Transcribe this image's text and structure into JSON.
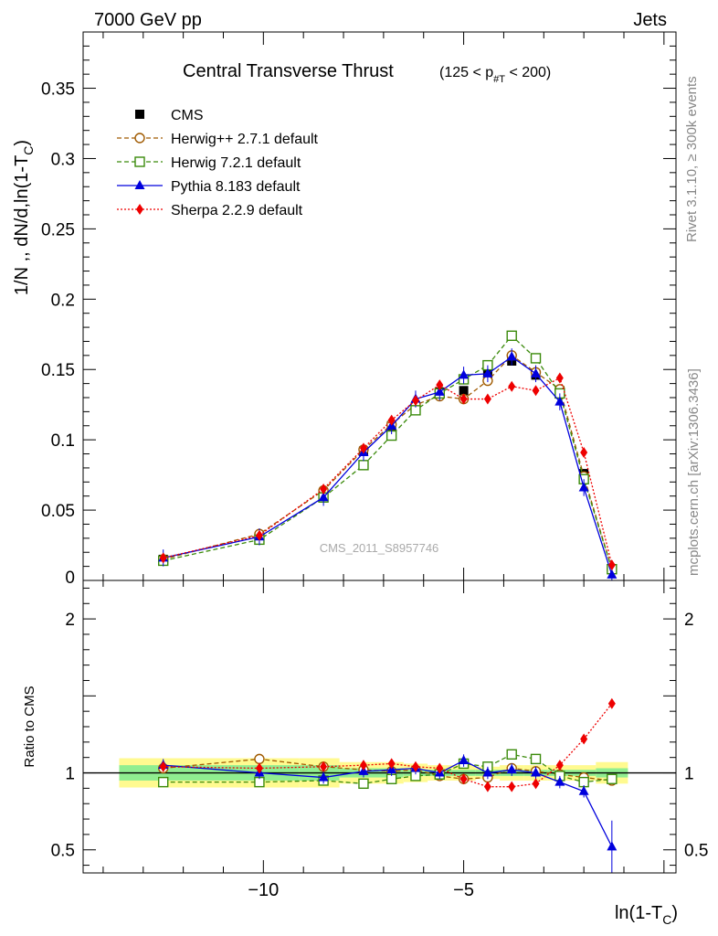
{
  "header": {
    "left": "7000 GeV pp",
    "right": "Jets"
  },
  "side": {
    "rivet": "Rivet 3.1.10, ≥ 300k events",
    "mcplots": "mcplots.cern.ch [arXiv:1306.3436]"
  },
  "watermark": "CMS_2011_S8957746",
  "chart_data": [
    {
      "type": "scatter",
      "title": "Central Transverse Thrust",
      "title_suffix": "(125 < p#T < 200)",
      "ylabel": "1/N ,, dN/d,ln(1-T_C)",
      "xlabel": "ln(1-T_C)",
      "xlim": [
        -14.5,
        0.3
      ],
      "ylim": [
        0,
        0.39
      ],
      "x_ticks": [
        -10,
        -5
      ],
      "x_tick_labels": [
        "−10",
        "−5"
      ],
      "y_ticks": [
        0.05,
        0.1,
        0.15,
        0.2,
        0.25,
        0.3,
        0.35
      ],
      "y_tick_labels": [
        "0.05",
        "0.1",
        "0.15",
        "0.2",
        "0.25",
        "0.3",
        "0.35"
      ],
      "y_zero_label": "0",
      "x": [
        -12.5,
        -10.1,
        -8.5,
        -7.5,
        -6.8,
        -6.2,
        -5.6,
        -5.0,
        -4.4,
        -3.8,
        -3.2,
        -2.6,
        -2.0,
        -1.3
      ],
      "series": [
        {
          "name": "CMS",
          "color": "#000000",
          "marker": "square-filled",
          "line": "none",
          "values": [
            0.015,
            0.031,
            0.062,
            0.092,
            0.11,
            0.123,
            0.134,
            0.135,
            0.147,
            0.156,
            0.146,
            0.135,
            0.076,
            0.008
          ]
        },
        {
          "name": "Herwig++ 2.7.1 default",
          "color": "#a05a00",
          "marker": "circle-open",
          "line": "dashed",
          "values": [
            0.015,
            0.033,
            0.064,
            0.093,
            0.111,
            0.125,
            0.131,
            0.129,
            0.142,
            0.16,
            0.148,
            0.136,
            0.074,
            0.008
          ]
        },
        {
          "name": "Herwig 7.2.1 default",
          "color": "#3a8a0a",
          "marker": "square-open",
          "line": "dashed",
          "values": [
            0.014,
            0.029,
            0.059,
            0.082,
            0.103,
            0.121,
            0.133,
            0.143,
            0.153,
            0.174,
            0.158,
            0.133,
            0.072,
            0.008
          ]
        },
        {
          "name": "Pythia 8.183 default",
          "color": "#0000dd",
          "marker": "triangle-filled",
          "line": "solid",
          "values": [
            0.016,
            0.031,
            0.059,
            0.091,
            0.11,
            0.129,
            0.134,
            0.146,
            0.147,
            0.159,
            0.147,
            0.127,
            0.066,
            0.004
          ]
        },
        {
          "name": "Sherpa 2.2.9 default",
          "color": "#ee0000",
          "marker": "diamond-filled",
          "line": "dotted",
          "values": [
            0.016,
            0.032,
            0.065,
            0.094,
            0.114,
            0.128,
            0.139,
            0.129,
            0.129,
            0.138,
            0.135,
            0.144,
            0.091,
            0.011
          ]
        }
      ]
    },
    {
      "type": "scatter",
      "title": "Ratio to CMS",
      "ylabel": "Ratio to CMS",
      "xlabel": "ln(1-T_C)",
      "xlim": [
        -14.5,
        0.3
      ],
      "ylim": [
        0.35,
        2.25
      ],
      "y_ticks": [
        0.5,
        1,
        2
      ],
      "y_tick_labels": [
        "0.5",
        "1",
        "2"
      ],
      "x": [
        -12.5,
        -10.1,
        -8.5,
        -7.5,
        -6.8,
        -6.2,
        -5.6,
        -5.0,
        -4.4,
        -3.8,
        -3.2,
        -2.6,
        -2.0,
        -1.3
      ],
      "band_edges": [
        -13.6,
        -9.1,
        -8.1,
        -7.1,
        -6.5,
        -5.9,
        -5.3,
        -4.7,
        -4.1,
        -3.5,
        -2.9,
        -2.3,
        -1.7,
        -0.9
      ],
      "band_yellow": [
        0.095,
        0.095,
        0.07,
        0.07,
        0.06,
        0.05,
        0.05,
        0.04,
        0.05,
        0.05,
        0.05,
        0.05,
        0.07
      ],
      "band_green": [
        0.05,
        0.05,
        0.03,
        0.03,
        0.02,
        0.02,
        0.02,
        0.02,
        0.02,
        0.02,
        0.02,
        0.02,
        0.03
      ],
      "series": [
        {
          "name": "Herwig++ 2.7.1 default",
          "color": "#a05a00",
          "marker": "circle-open",
          "line": "dashed",
          "values": [
            1.03,
            1.09,
            1.04,
            1.02,
            1.01,
            1.02,
            0.98,
            0.96,
            0.97,
            1.03,
            1.01,
            0.99,
            0.97,
            0.95
          ]
        },
        {
          "name": "Herwig 7.2.1 default",
          "color": "#3a8a0a",
          "marker": "square-open",
          "line": "dashed",
          "values": [
            0.94,
            0.94,
            0.95,
            0.93,
            0.96,
            0.98,
            0.99,
            1.06,
            1.04,
            1.12,
            1.09,
            0.98,
            0.94,
            0.96
          ]
        },
        {
          "name": "Pythia 8.183 default",
          "color": "#0000dd",
          "marker": "triangle-filled",
          "line": "solid",
          "values": [
            1.05,
            1.0,
            0.97,
            1.01,
            1.02,
            1.03,
            1.0,
            1.08,
            1.0,
            1.02,
            1.0,
            0.94,
            0.88,
            0.52
          ]
        },
        {
          "name": "Sherpa 2.2.9 default",
          "color": "#ee0000",
          "marker": "diamond-filled",
          "line": "dotted",
          "values": [
            1.04,
            1.03,
            1.04,
            1.05,
            1.06,
            1.04,
            1.03,
            0.96,
            0.91,
            0.91,
            0.93,
            1.05,
            1.22,
            1.45
          ]
        }
      ]
    }
  ]
}
